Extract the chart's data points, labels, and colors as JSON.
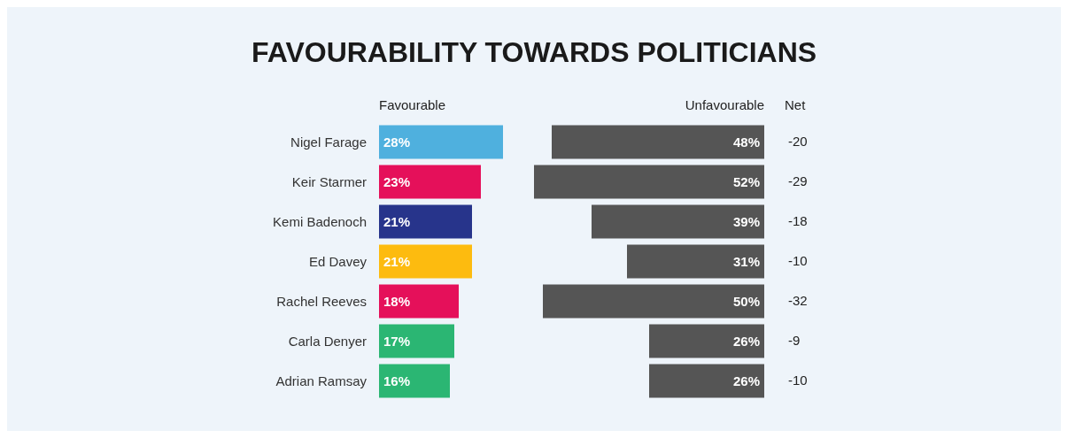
{
  "chart_data": [
    {
      "type": "bar",
      "orientation": "horizontal",
      "title": "FAVOURABILITY TOWARDS POLITICIANS",
      "categories": [
        "Nigel Farage",
        "Keir Starmer",
        "Kemi Badenoch",
        "Ed Davey",
        "Rachel Reeves",
        "Carla Denyer",
        "Adrian Ramsay"
      ],
      "series": [
        {
          "name": "Favourable",
          "colors": [
            "#4fb0de",
            "#e5105a",
            "#27348b",
            "#fdbb0f",
            "#e5105a",
            "#2bb673",
            "#2bb673"
          ],
          "values": [
            28,
            23,
            21,
            21,
            18,
            17,
            16
          ],
          "value_labels": [
            "28%",
            "23%",
            "21%",
            "21%",
            "18%",
            "17%",
            "16%"
          ]
        }
      ]
    },
    {
      "type": "bar",
      "orientation": "horizontal",
      "tick_labels": false,
      "categories": [
        null,
        null,
        null,
        null,
        null,
        null,
        null
      ],
      "series": [
        {
          "name": "Unfavourable",
          "color": "#555555",
          "values": [
            48,
            52,
            39,
            31,
            50,
            26,
            26
          ],
          "value_labels": [
            "48%",
            "52%",
            "39%",
            "31%",
            "50%",
            "26%",
            "26%"
          ]
        }
      ]
    },
    {
      "type": "other",
      "title": "Net",
      "data_labels": true,
      "values": [
        -20,
        -29,
        -18,
        -10,
        -32,
        -9,
        -10
      ]
    }
  ]
}
